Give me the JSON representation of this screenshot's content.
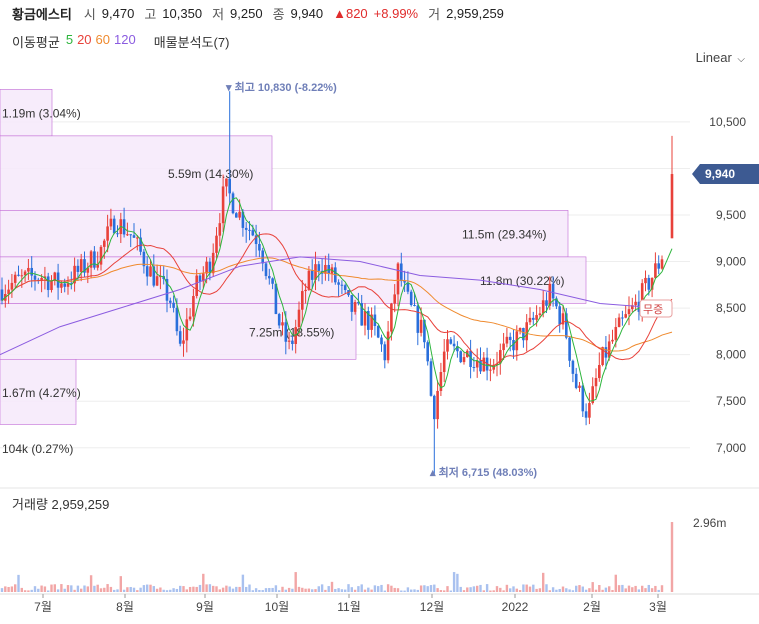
{
  "header": {
    "name": "황금에스티",
    "open_label": "시",
    "open": "9,470",
    "high_label": "고",
    "high": "10,350",
    "low_label": "저",
    "low": "9,250",
    "close_label": "종",
    "close": "9,940",
    "change": "▲820",
    "change_pct": "+8.99%",
    "volume_label": "거",
    "volume": "2,959,259"
  },
  "indicators": {
    "ma_label": "이동평균",
    "ma": [
      {
        "period": "5",
        "color": "#2db53c"
      },
      {
        "period": "20",
        "color": "#e8413a"
      },
      {
        "period": "60",
        "color": "#ef8a2e"
      },
      {
        "period": "120",
        "color": "#8b5ce0"
      }
    ],
    "profile_label": "매물분석도(7)"
  },
  "scale_button": "Linear",
  "chart_data": {
    "type": "candlestick",
    "y_ticks": [
      "10,500",
      "10,000",
      "9,500",
      "9,000",
      "8,500",
      "8,000",
      "7,500",
      "7,000"
    ],
    "ylim": [
      6600,
      10950
    ],
    "x_ticks": [
      "7월",
      "8월",
      "9월",
      "10월",
      "11월",
      "12월",
      "2022",
      "2월",
      "3월"
    ],
    "current_price": "9,940",
    "high_marker": {
      "label": "최고",
      "value": "10,830",
      "pct": "(-8.22%)"
    },
    "low_marker": {
      "label": "최저",
      "value": "6,715",
      "pct": "(48.03%)"
    },
    "volume_profile": [
      {
        "label": "1.19m (3.04%)",
        "low": 10350,
        "high": 10850
      },
      {
        "label": "5.59m (14.30%)",
        "low": 9550,
        "high": 10350
      },
      {
        "label": "11.5m (29.34%)",
        "low": 9050,
        "high": 9550
      },
      {
        "label": "11.8m (30.22%)",
        "low": 8550,
        "high": 9050
      },
      {
        "label": "7.25m (18.55%)",
        "low": 7950,
        "high": 8550
      },
      {
        "label": "1.67m (4.27%)",
        "low": 7250,
        "high": 7950
      },
      {
        "label": "104k (0.27%)",
        "low": 6750,
        "high": 7250
      }
    ],
    "badge": "무증",
    "volume_title": "거래량",
    "volume_value": "2,959,259",
    "volume_tick": "2.96m",
    "volume_max": 2960000,
    "colors": {
      "up": "#e8413a",
      "down": "#2a6fdb",
      "ma5": "#2db53c",
      "ma20": "#e8413a",
      "ma60": "#ef8a2e",
      "ma120": "#8b5ce0",
      "profile": "#c26bd6"
    }
  }
}
